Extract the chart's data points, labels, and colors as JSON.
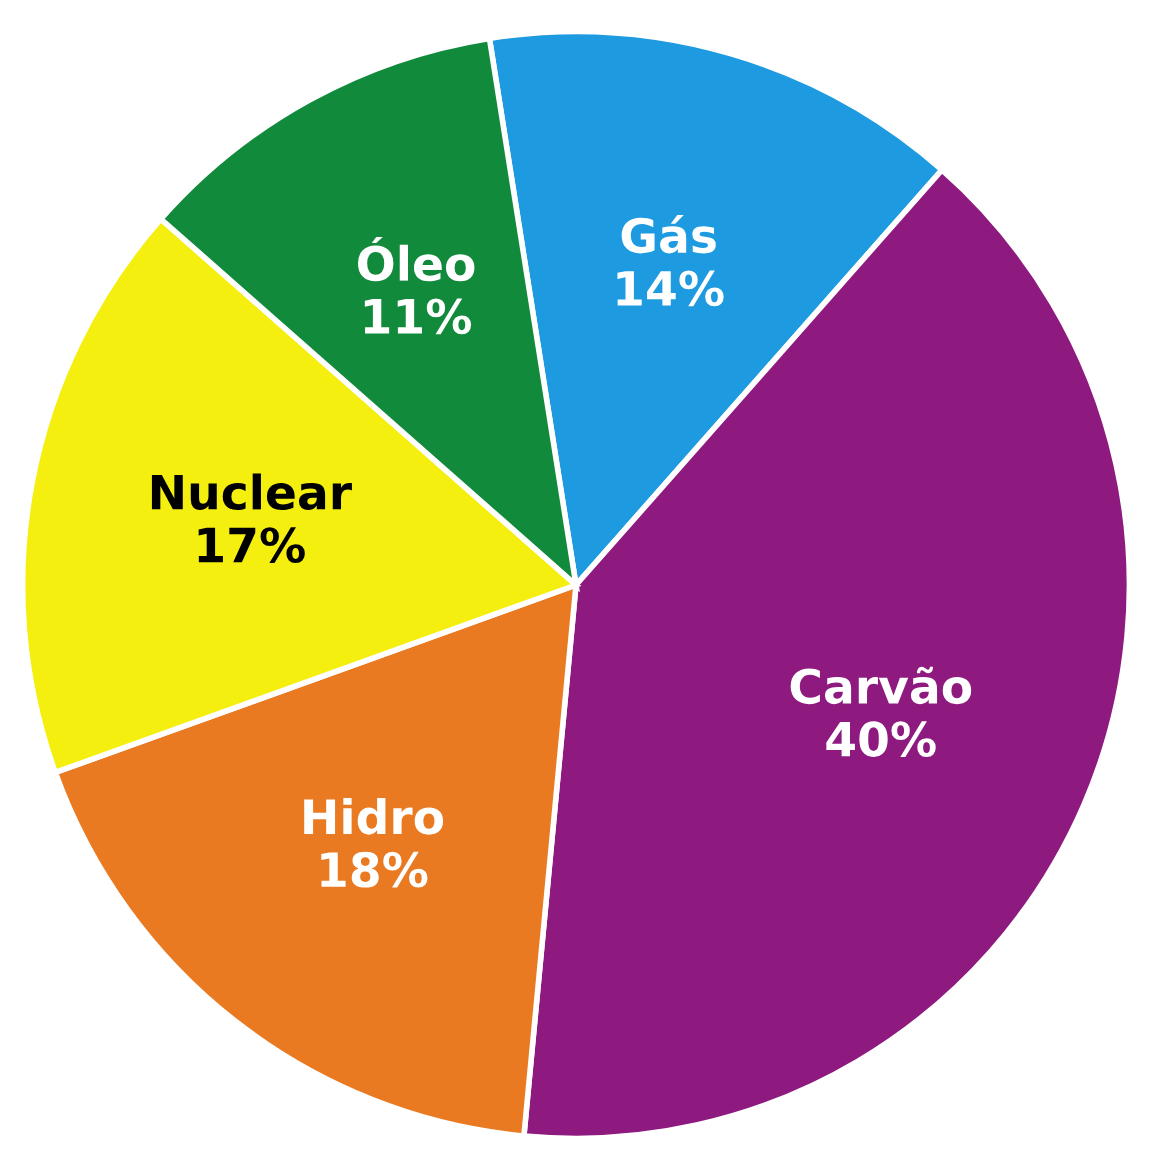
{
  "chart_data": {
    "type": "pie",
    "categories": [
      "Gás",
      "Carvão",
      "Hidro",
      "Nuclear",
      "Óleo"
    ],
    "values": [
      14,
      40,
      18,
      17,
      11
    ],
    "value_labels": [
      "14%",
      "40%",
      "18%",
      "17%",
      "11%"
    ],
    "colors": [
      "#1e9be0",
      "#8e1a7f",
      "#ea7a22",
      "#f5ef0f",
      "#128a3c"
    ],
    "legend": false
  }
}
